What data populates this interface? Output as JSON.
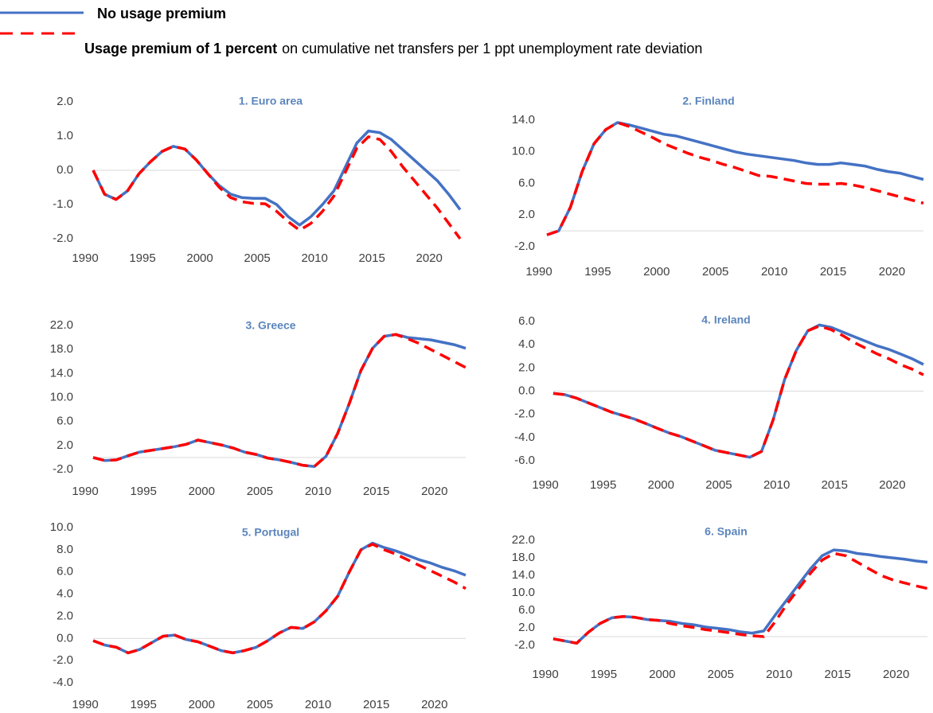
{
  "legend": {
    "items": [
      {
        "name": "No usage premium"
      },
      {
        "name": "Usage premium of 1 percent",
        "name_rest": "on cumulative net transfers per 1 ppt unemployment rate deviation"
      }
    ]
  },
  "chart_data": [
    {
      "type": "line",
      "title": "1. Euro area",
      "x": [
        1990,
        1991,
        1992,
        1993,
        1994,
        1995,
        1996,
        1997,
        1998,
        1999,
        2000,
        2001,
        2002,
        2003,
        2004,
        2005,
        2006,
        2007,
        2008,
        2009,
        2010,
        2011,
        2012,
        2013,
        2014,
        2015,
        2016,
        2017,
        2018,
        2019,
        2020,
        2021,
        2022
      ],
      "xlim": [
        1990,
        2022
      ],
      "xticks": [
        1990,
        1995,
        2000,
        2005,
        2010,
        2015,
        2020
      ],
      "ylim": [
        -2,
        2
      ],
      "yticks": [
        {
          "value": -2,
          "label": "-2.0"
        },
        {
          "value": -1,
          "label": "-1.0"
        },
        {
          "value": 0,
          "label": "0.0"
        },
        {
          "value": 1,
          "label": "1.0"
        },
        {
          "value": 2,
          "label": "2.0"
        }
      ],
      "series": [
        {
          "color": "#4472c4",
          "dash": false,
          "values": [
            0,
            -0.7,
            -0.85,
            -0.6,
            -0.1,
            0.25,
            0.55,
            0.7,
            0.62,
            0.3,
            -0.1,
            -0.45,
            -0.7,
            -0.8,
            -0.82,
            -0.82,
            -1.0,
            -1.35,
            -1.6,
            -1.35,
            -1.0,
            -0.6,
            0.1,
            0.8,
            1.15,
            1.1,
            0.9,
            0.6,
            0.3,
            0.0,
            -0.3,
            -0.7,
            -1.15
          ]
        },
        {
          "color": "#ff0000",
          "dash": true,
          "values": [
            0,
            -0.7,
            -0.85,
            -0.6,
            -0.1,
            0.25,
            0.55,
            0.7,
            0.62,
            0.3,
            -0.1,
            -0.5,
            -0.8,
            -0.92,
            -0.97,
            -0.98,
            -1.2,
            -1.5,
            -1.75,
            -1.55,
            -1.2,
            -0.75,
            -0.05,
            0.65,
            0.98,
            0.9,
            0.55,
            0.1,
            -0.3,
            -0.7,
            -1.1,
            -1.55,
            -2.0
          ]
        }
      ]
    },
    {
      "type": "line",
      "title": "2. Finland",
      "x": [
        1990,
        1991,
        1992,
        1993,
        1994,
        1995,
        1996,
        1997,
        1998,
        1999,
        2000,
        2001,
        2002,
        2003,
        2004,
        2005,
        2006,
        2007,
        2008,
        2009,
        2010,
        2011,
        2012,
        2013,
        2014,
        2015,
        2016,
        2017,
        2018,
        2019,
        2020,
        2021,
        2022
      ],
      "xlim": [
        1990,
        2022
      ],
      "xticks": [
        1990,
        1995,
        2000,
        2005,
        2010,
        2015,
        2020
      ],
      "ylim": [
        -2,
        14
      ],
      "yticks": [
        {
          "value": -2,
          "label": "-2.0"
        },
        {
          "value": 2,
          "label": "2.0"
        },
        {
          "value": 6,
          "label": "6.0"
        },
        {
          "value": 10,
          "label": "10.0"
        },
        {
          "value": 14,
          "label": "14.0"
        }
      ],
      "series": [
        {
          "color": "#4472c4",
          "dash": false,
          "values": [
            -0.5,
            0,
            3,
            7.5,
            11,
            12.8,
            13.7,
            13.4,
            13.0,
            12.6,
            12.2,
            12.0,
            11.6,
            11.2,
            10.8,
            10.4,
            10.0,
            9.7,
            9.5,
            9.3,
            9.1,
            8.9,
            8.6,
            8.4,
            8.4,
            8.6,
            8.4,
            8.2,
            7.8,
            7.5,
            7.3,
            6.9,
            6.5
          ]
        },
        {
          "color": "#ff0000",
          "dash": true,
          "values": [
            -0.5,
            0,
            3,
            7.5,
            11,
            12.8,
            13.7,
            13.2,
            12.5,
            11.8,
            11.0,
            10.4,
            9.8,
            9.3,
            8.9,
            8.4,
            8.0,
            7.5,
            7.0,
            6.9,
            6.6,
            6.3,
            6.0,
            5.9,
            5.9,
            6.0,
            5.8,
            5.5,
            5.1,
            4.7,
            4.3,
            3.9,
            3.5
          ]
        }
      ]
    },
    {
      "type": "line",
      "title": "3. Greece",
      "x": [
        1990,
        1991,
        1992,
        1993,
        1994,
        1995,
        1996,
        1997,
        1998,
        1999,
        2000,
        2001,
        2002,
        2003,
        2004,
        2005,
        2006,
        2007,
        2008,
        2009,
        2010,
        2011,
        2012,
        2013,
        2014,
        2015,
        2016,
        2017,
        2018,
        2019,
        2020,
        2021,
        2022
      ],
      "xlim": [
        1990,
        2022
      ],
      "xticks": [
        1990,
        1995,
        2000,
        2005,
        2010,
        2015,
        2020
      ],
      "ylim": [
        -2,
        22
      ],
      "yticks": [
        {
          "value": -2,
          "label": "-2.0"
        },
        {
          "value": 2,
          "label": "2.0"
        },
        {
          "value": 6,
          "label": "6.0"
        },
        {
          "value": 10,
          "label": "10.0"
        },
        {
          "value": 14,
          "label": "14.0"
        },
        {
          "value": 18,
          "label": "18.0"
        },
        {
          "value": 22,
          "label": "22.0"
        }
      ],
      "series": [
        {
          "color": "#4472c4",
          "dash": false,
          "values": [
            0,
            -0.5,
            -0.4,
            0.3,
            0.9,
            1.2,
            1.5,
            1.8,
            2.2,
            2.9,
            2.5,
            2.1,
            1.6,
            0.9,
            0.5,
            -0.1,
            -0.4,
            -0.8,
            -1.3,
            -1.5,
            0.2,
            4,
            9,
            14.5,
            18.2,
            20.2,
            20.5,
            20.0,
            19.8,
            19.6,
            19.2,
            18.8,
            18.2
          ]
        },
        {
          "color": "#ff0000",
          "dash": true,
          "values": [
            0,
            -0.5,
            -0.4,
            0.3,
            0.9,
            1.2,
            1.5,
            1.8,
            2.2,
            2.9,
            2.5,
            2.1,
            1.6,
            0.9,
            0.5,
            -0.1,
            -0.4,
            -0.8,
            -1.3,
            -1.5,
            0.2,
            4,
            9,
            14.5,
            18.2,
            20.2,
            20.5,
            19.8,
            19.0,
            18.0,
            17.0,
            16.0,
            15.0
          ]
        }
      ]
    },
    {
      "type": "line",
      "title": "4. Ireland",
      "x": [
        1990,
        1991,
        1992,
        1993,
        1994,
        1995,
        1996,
        1997,
        1998,
        1999,
        2000,
        2001,
        2002,
        2003,
        2004,
        2005,
        2006,
        2007,
        2008,
        2009,
        2010,
        2011,
        2012,
        2013,
        2014,
        2015,
        2016,
        2017,
        2018,
        2019,
        2020,
        2021,
        2022
      ],
      "xlim": [
        1990,
        2022
      ],
      "xticks": [
        1990,
        1995,
        2000,
        2005,
        2010,
        2015,
        2020
      ],
      "ylim": [
        -6,
        6
      ],
      "yticks": [
        {
          "value": -6,
          "label": "-6.0"
        },
        {
          "value": -4,
          "label": "-4.0"
        },
        {
          "value": -2,
          "label": "-2.0"
        },
        {
          "value": 0,
          "label": "0.0"
        },
        {
          "value": 2,
          "label": "2.0"
        },
        {
          "value": 4,
          "label": "4.0"
        },
        {
          "value": 6,
          "label": "6.0"
        }
      ],
      "series": [
        {
          "color": "#4472c4",
          "dash": false,
          "values": [
            -0.2,
            -0.3,
            -0.6,
            -1.0,
            -1.4,
            -1.8,
            -2.1,
            -2.4,
            -2.8,
            -3.2,
            -3.6,
            -3.9,
            -4.3,
            -4.7,
            -5.1,
            -5.3,
            -5.5,
            -5.7,
            -5.2,
            -2.5,
            1.0,
            3.5,
            5.2,
            5.7,
            5.5,
            5.1,
            4.7,
            4.3,
            3.9,
            3.6,
            3.2,
            2.8,
            2.3
          ]
        },
        {
          "color": "#ff0000",
          "dash": true,
          "values": [
            -0.2,
            -0.3,
            -0.6,
            -1.0,
            -1.4,
            -1.8,
            -2.1,
            -2.4,
            -2.8,
            -3.2,
            -3.6,
            -3.9,
            -4.3,
            -4.7,
            -5.1,
            -5.3,
            -5.5,
            -5.7,
            -5.2,
            -2.5,
            1.0,
            3.5,
            5.2,
            5.6,
            5.3,
            4.8,
            4.2,
            3.7,
            3.2,
            2.8,
            2.3,
            1.9,
            1.4
          ]
        }
      ]
    },
    {
      "type": "line",
      "title": "5. Portugal",
      "x": [
        1990,
        1991,
        1992,
        1993,
        1994,
        1995,
        1996,
        1997,
        1998,
        1999,
        2000,
        2001,
        2002,
        2003,
        2004,
        2005,
        2006,
        2007,
        2008,
        2009,
        2010,
        2011,
        2012,
        2013,
        2014,
        2015,
        2016,
        2017,
        2018,
        2019,
        2020,
        2021,
        2022
      ],
      "xlim": [
        1990,
        2022
      ],
      "xticks": [
        1990,
        1995,
        2000,
        2005,
        2010,
        2015,
        2020
      ],
      "ylim": [
        -4,
        10
      ],
      "yticks": [
        {
          "value": -4,
          "label": "-4.0"
        },
        {
          "value": -2,
          "label": "-2.0"
        },
        {
          "value": 0,
          "label": "0.0"
        },
        {
          "value": 2,
          "label": "2.0"
        },
        {
          "value": 4,
          "label": "4.0"
        },
        {
          "value": 6,
          "label": "6.0"
        },
        {
          "value": 8,
          "label": "8.0"
        },
        {
          "value": 10,
          "label": "10.0"
        }
      ],
      "series": [
        {
          "color": "#4472c4",
          "dash": false,
          "values": [
            -0.2,
            -0.6,
            -0.8,
            -1.3,
            -1.0,
            -0.4,
            0.2,
            0.3,
            -0.1,
            -0.3,
            -0.7,
            -1.1,
            -1.3,
            -1.1,
            -0.8,
            -0.2,
            0.5,
            1.0,
            0.9,
            1.5,
            2.5,
            3.8,
            6.0,
            8.0,
            8.6,
            8.2,
            7.9,
            7.5,
            7.1,
            6.8,
            6.4,
            6.1,
            5.7
          ]
        },
        {
          "color": "#ff0000",
          "dash": true,
          "values": [
            -0.2,
            -0.6,
            -0.8,
            -1.3,
            -1.0,
            -0.4,
            0.2,
            0.3,
            -0.1,
            -0.3,
            -0.7,
            -1.1,
            -1.3,
            -1.1,
            -0.8,
            -0.2,
            0.5,
            1.0,
            0.9,
            1.5,
            2.5,
            3.8,
            6.0,
            8.0,
            8.5,
            8.0,
            7.6,
            7.1,
            6.6,
            6.1,
            5.6,
            5.1,
            4.5
          ]
        }
      ]
    },
    {
      "type": "line",
      "title": "6. Spain",
      "x": [
        1990,
        1991,
        1992,
        1993,
        1994,
        1995,
        1996,
        1997,
        1998,
        1999,
        2000,
        2001,
        2002,
        2003,
        2004,
        2005,
        2006,
        2007,
        2008,
        2009,
        2010,
        2011,
        2012,
        2013,
        2014,
        2015,
        2016,
        2017,
        2018,
        2019,
        2020,
        2021,
        2022
      ],
      "xlim": [
        1990,
        2022
      ],
      "xticks": [
        1990,
        1995,
        2000,
        2005,
        2010,
        2015,
        2020
      ],
      "ylim": [
        -2,
        22
      ],
      "yticks": [
        {
          "value": -2,
          "label": "-2.0"
        },
        {
          "value": 2,
          "label": "2.0"
        },
        {
          "value": 6,
          "label": "6.0"
        },
        {
          "value": 10,
          "label": "10.0"
        },
        {
          "value": 14,
          "label": "14.0"
        },
        {
          "value": 18,
          "label": "18.0"
        },
        {
          "value": 22,
          "label": "22.0"
        }
      ],
      "series": [
        {
          "color": "#4472c4",
          "dash": false,
          "values": [
            -0.5,
            -1.0,
            -1.5,
            1.0,
            3.0,
            4.3,
            4.6,
            4.4,
            3.9,
            3.7,
            3.5,
            3.0,
            2.7,
            2.2,
            1.9,
            1.6,
            1.1,
            0.8,
            1.3,
            5.0,
            8.5,
            12.0,
            15.5,
            18.5,
            19.8,
            19.6,
            19.0,
            18.7,
            18.3,
            18.0,
            17.7,
            17.3,
            17.0
          ]
        },
        {
          "color": "#ff0000",
          "dash": true,
          "values": [
            -0.5,
            -1.0,
            -1.5,
            1.0,
            3.0,
            4.3,
            4.6,
            4.4,
            3.9,
            3.7,
            3.0,
            2.5,
            2.1,
            1.6,
            1.3,
            0.9,
            0.5,
            0.2,
            0.0,
            3.5,
            7.5,
            11.0,
            14.5,
            17.5,
            19.0,
            18.5,
            17.0,
            15.5,
            14.0,
            13.0,
            12.3,
            11.6,
            11.0
          ]
        }
      ]
    }
  ]
}
